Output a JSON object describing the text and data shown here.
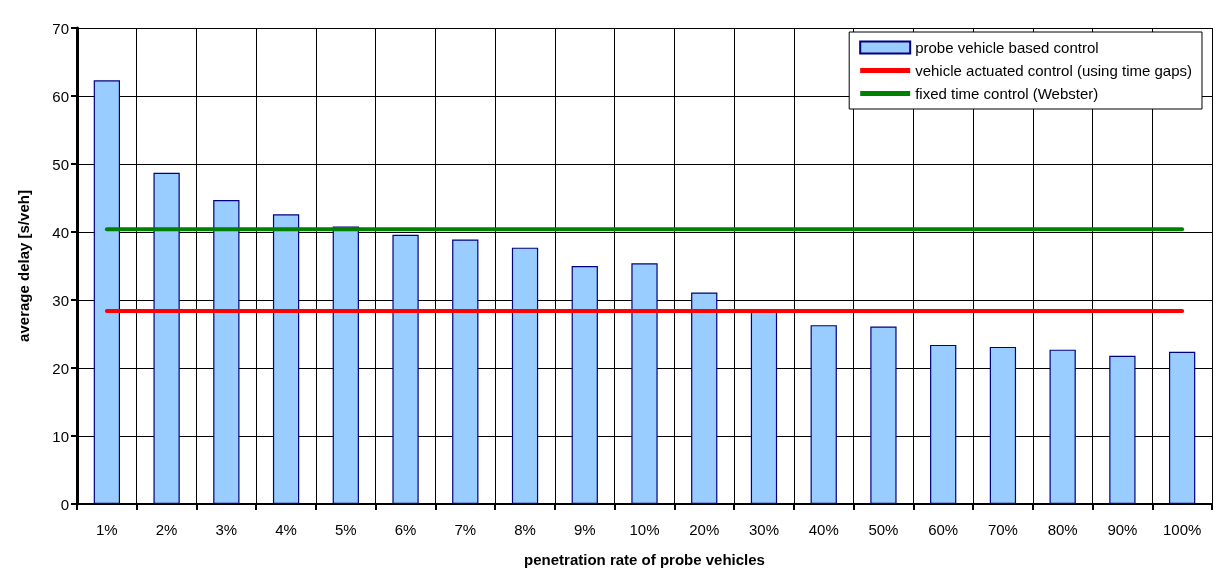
{
  "chart_data": {
    "type": "bar",
    "xlabel": "penetration rate of probe vehicles",
    "ylabel": "average delay [s/veh]",
    "categories": [
      "1%",
      "2%",
      "3%",
      "4%",
      "5%",
      "6%",
      "7%",
      "8%",
      "9%",
      "10%",
      "20%",
      "30%",
      "40%",
      "50%",
      "60%",
      "70%",
      "80%",
      "90%",
      "100%"
    ],
    "series": [
      {
        "name": "probe vehicle based control",
        "color": "#99ccff",
        "values": [
          62.3,
          48.7,
          44.7,
          42.6,
          40.8,
          39.6,
          38.9,
          37.7,
          35.0,
          35.4,
          31.1,
          28.3,
          26.3,
          26.1,
          23.4,
          23.1,
          22.7,
          21.8,
          22.4
        ]
      },
      {
        "name": "vehicle actuated control (using time gaps)",
        "type": "line",
        "color": "#ff0000",
        "values": [
          28.4,
          28.4,
          28.4,
          28.4,
          28.4,
          28.4,
          28.4,
          28.4,
          28.4,
          28.4,
          28.4,
          28.4,
          28.4,
          28.4,
          28.4,
          28.4,
          28.4,
          28.4,
          28.4
        ]
      },
      {
        "name": "fixed time control (Webster)",
        "type": "line",
        "color": "#008000",
        "values": [
          40.4,
          40.4,
          40.4,
          40.4,
          40.4,
          40.4,
          40.4,
          40.4,
          40.4,
          40.4,
          40.4,
          40.4,
          40.4,
          40.4,
          40.4,
          40.4,
          40.4,
          40.4,
          40.4
        ]
      }
    ],
    "ylim": [
      0,
      70
    ],
    "yticks": [
      0,
      10,
      20,
      30,
      40,
      50,
      60,
      70
    ],
    "grid": true,
    "legend": "top right",
    "marker": "none",
    "line_style": "solid"
  }
}
